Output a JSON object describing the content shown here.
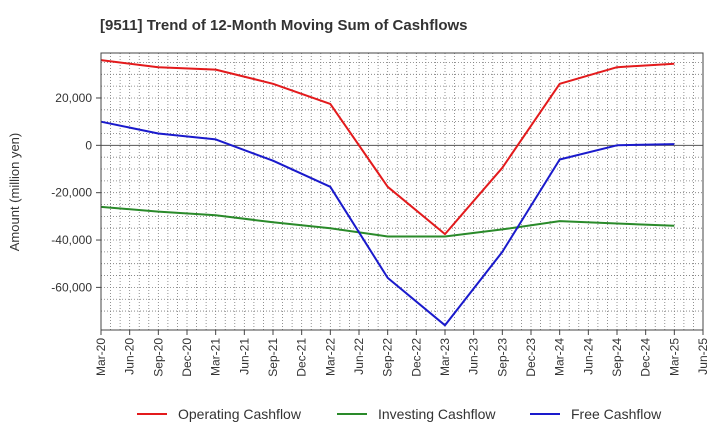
{
  "chart_data": {
    "type": "line",
    "title": "[9511]  Trend of 12-Month Moving Sum of Cashflows",
    "xlabel": "",
    "ylabel": "Amount (million yen)",
    "ylim": [
      -78000,
      39000
    ],
    "yticks": [
      20000,
      0,
      -20000,
      -40000,
      -60000
    ],
    "ytick_labels": [
      "20,000",
      "0",
      "-20,000",
      "-40,000",
      "-60,000"
    ],
    "x_labels": [
      "Mar-20",
      "Jun-20",
      "Sep-20",
      "Dec-20",
      "Mar-21",
      "Jun-21",
      "Sep-21",
      "Dec-21",
      "Mar-22",
      "Jun-22",
      "Sep-22",
      "Dec-22",
      "Mar-23",
      "Jun-23",
      "Sep-23",
      "Dec-23",
      "Mar-24",
      "Jun-24",
      "Sep-24",
      "Dec-24",
      "Mar-25",
      "Jun-25"
    ],
    "grid": true,
    "legend_position": "bottom",
    "series": [
      {
        "name": "Operating Cashflow",
        "color": "#e31a1c",
        "x": [
          "Mar-20",
          "Sep-20",
          "Mar-21",
          "Sep-21",
          "Mar-22",
          "Sep-22",
          "Mar-23",
          "Sep-23",
          "Mar-24",
          "Sep-24",
          "Mar-25"
        ],
        "values": [
          36000,
          33000,
          32000,
          26000,
          17500,
          -17500,
          -37500,
          -9500,
          26000,
          33000,
          34500
        ]
      },
      {
        "name": "Investing Cashflow",
        "color": "#2a8a2a",
        "x": [
          "Mar-20",
          "Sep-20",
          "Mar-21",
          "Sep-21",
          "Mar-22",
          "Sep-22",
          "Mar-23",
          "Sep-23",
          "Mar-24",
          "Sep-24",
          "Mar-25"
        ],
        "values": [
          -26000,
          -28000,
          -29500,
          -32500,
          -35000,
          -38500,
          -38500,
          -35500,
          -32000,
          -33000,
          -34000
        ]
      },
      {
        "name": "Free Cashflow",
        "color": "#1a1acc",
        "x": [
          "Mar-20",
          "Sep-20",
          "Mar-21",
          "Sep-21",
          "Mar-22",
          "Sep-22",
          "Mar-23",
          "Sep-23",
          "Mar-24",
          "Sep-24",
          "Mar-25"
        ],
        "values": [
          10000,
          5000,
          2500,
          -6500,
          -17500,
          -56000,
          -76000,
          -45000,
          -6000,
          0,
          500
        ]
      }
    ]
  }
}
